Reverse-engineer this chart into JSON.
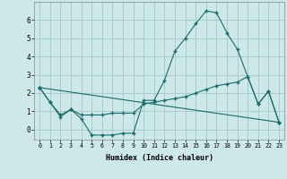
{
  "xlabel": "Humidex (Indice chaleur)",
  "bg_color": "#cce8e8",
  "grid_color": "#aacccc",
  "line_color": "#1a6b6b",
  "xlim": [
    -0.5,
    23.5
  ],
  "ylim": [
    -0.55,
    7.0
  ],
  "yticks": [
    0,
    1,
    2,
    3,
    4,
    5,
    6
  ],
  "xtick_labels": [
    "0",
    "1",
    "2",
    "3",
    "4",
    "5",
    "6",
    "7",
    "8",
    "9",
    "10",
    "11",
    "12",
    "13",
    "14",
    "15",
    "16",
    "17",
    "18",
    "19",
    "20",
    "21",
    "22",
    "23"
  ],
  "series1_x": [
    0,
    1,
    2,
    3,
    4,
    5,
    6,
    7,
    8,
    9,
    10,
    11,
    12,
    13,
    14,
    15,
    16,
    17,
    18,
    19,
    20,
    21,
    22,
    23
  ],
  "series1_y": [
    2.3,
    1.5,
    0.7,
    1.1,
    0.6,
    -0.3,
    -0.3,
    -0.3,
    -0.2,
    -0.2,
    1.6,
    1.6,
    2.7,
    4.3,
    5.0,
    5.8,
    6.5,
    6.4,
    5.3,
    4.4,
    2.9,
    1.4,
    2.1,
    0.4
  ],
  "series2_x": [
    0,
    1,
    2,
    3,
    4,
    5,
    6,
    7,
    8,
    9,
    10,
    11,
    12,
    13,
    14,
    15,
    16,
    17,
    18,
    19,
    20,
    21,
    22,
    23
  ],
  "series2_y": [
    2.3,
    1.5,
    0.8,
    1.1,
    0.8,
    0.8,
    0.8,
    0.9,
    0.9,
    0.9,
    1.4,
    1.5,
    1.6,
    1.7,
    1.8,
    2.0,
    2.2,
    2.4,
    2.5,
    2.6,
    2.9,
    1.4,
    2.1,
    0.4
  ],
  "series3_x": [
    0,
    23
  ],
  "series3_y": [
    2.3,
    0.4
  ]
}
